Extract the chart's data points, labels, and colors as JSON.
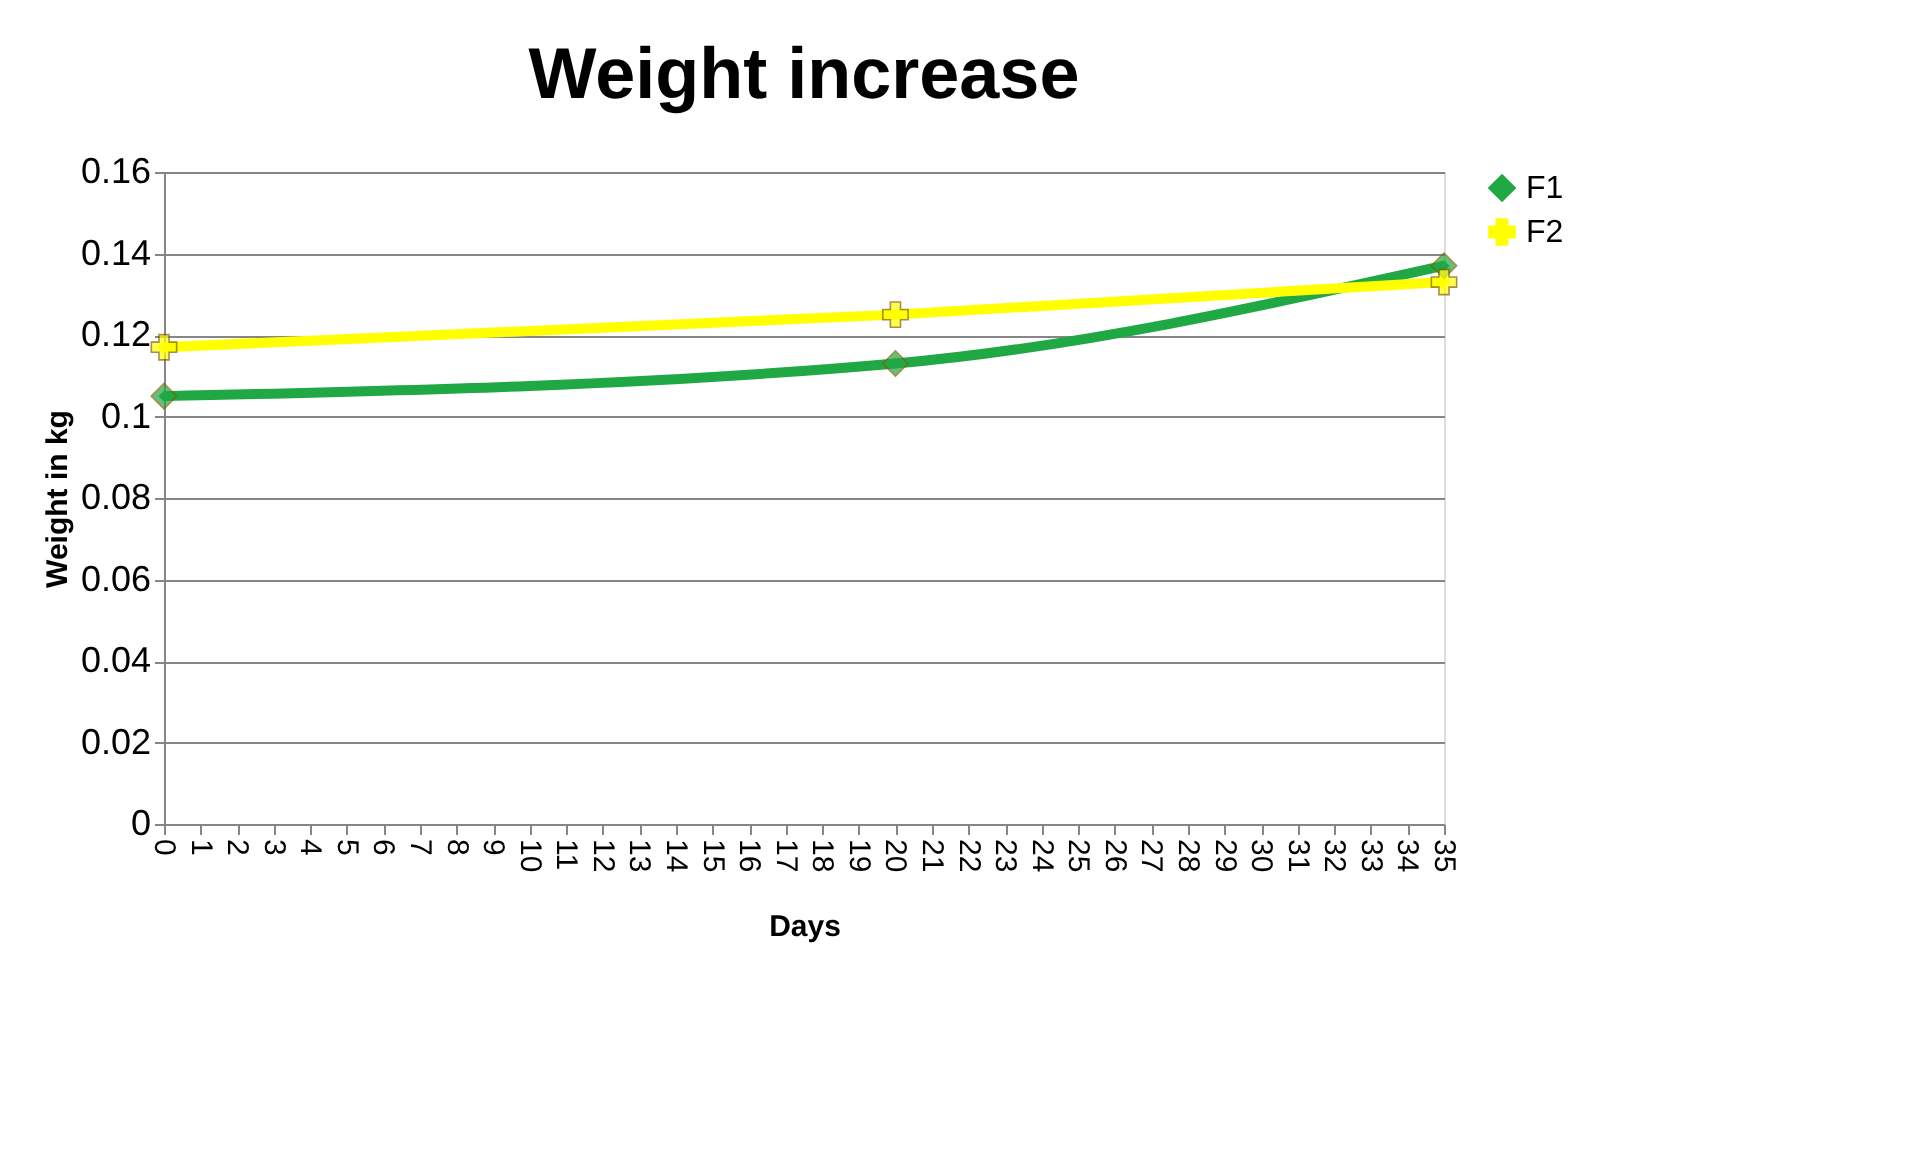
{
  "chart_data": {
    "type": "line",
    "title": "Weight increase",
    "xlabel": "Days",
    "ylabel": "Weight in kg",
    "x": [
      0,
      20,
      35
    ],
    "series": [
      {
        "name": "F1",
        "color": "#1fa844",
        "values": [
          0.105,
          0.113,
          0.137
        ],
        "marker": "diamond"
      },
      {
        "name": "F2",
        "color": "#ffff00",
        "values": [
          0.117,
          0.125,
          0.133
        ],
        "marker": "cross"
      }
    ],
    "xlim": [
      0,
      35
    ],
    "xticks": [
      0,
      1,
      2,
      3,
      4,
      5,
      6,
      7,
      8,
      9,
      10,
      11,
      12,
      13,
      14,
      15,
      16,
      17,
      18,
      19,
      20,
      21,
      22,
      23,
      24,
      25,
      26,
      27,
      28,
      29,
      30,
      31,
      32,
      33,
      34,
      35
    ],
    "ylim": [
      0,
      0.16
    ],
    "yticks": [
      0,
      0.02,
      0.04,
      0.06,
      0.08,
      0.1,
      0.12,
      0.14,
      0.16
    ],
    "grid": "y",
    "legend": "right",
    "line_style": "solid"
  }
}
